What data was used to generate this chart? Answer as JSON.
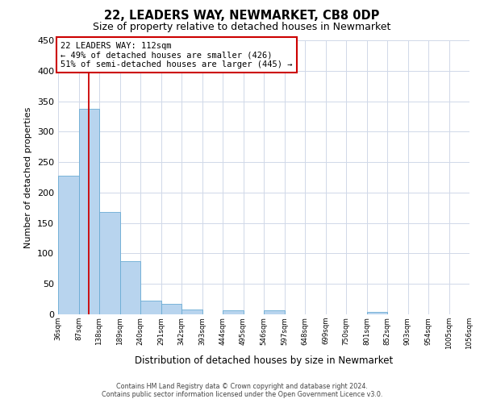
{
  "title": "22, LEADERS WAY, NEWMARKET, CB8 0DP",
  "subtitle": "Size of property relative to detached houses in Newmarket",
  "xlabel": "Distribution of detached houses by size in Newmarket",
  "ylabel": "Number of detached properties",
  "bin_starts": [
    36,
    87,
    138,
    189,
    240,
    291,
    342,
    393,
    444,
    495,
    546,
    597,
    648,
    699,
    750,
    801,
    852,
    903,
    954,
    1005
  ],
  "bar_counts": [
    228,
    338,
    168,
    88,
    23,
    17,
    8,
    0,
    6,
    0,
    7,
    0,
    0,
    0,
    0,
    4,
    0,
    0,
    0,
    0
  ],
  "bin_width": 51,
  "xtick_labels": [
    "36sqm",
    "87sqm",
    "138sqm",
    "189sqm",
    "240sqm",
    "291sqm",
    "342sqm",
    "393sqm",
    "444sqm",
    "495sqm",
    "546sqm",
    "597sqm",
    "648sqm",
    "699sqm",
    "750sqm",
    "801sqm",
    "852sqm",
    "903sqm",
    "954sqm",
    "1005sqm",
    "1056sqm"
  ],
  "bar_color": "#b8d4ee",
  "bar_edge_color": "#6aacd4",
  "vline_x": 112,
  "vline_color": "#cc0000",
  "ylim": [
    0,
    450
  ],
  "yticks": [
    0,
    50,
    100,
    150,
    200,
    250,
    300,
    350,
    400,
    450
  ],
  "annotation_title": "22 LEADERS WAY: 112sqm",
  "annotation_line1": "← 49% of detached houses are smaller (426)",
  "annotation_line2": "51% of semi-detached houses are larger (445) →",
  "annotation_box_color": "#ffffff",
  "annotation_box_edge": "#cc0000",
  "footer1": "Contains HM Land Registry data © Crown copyright and database right 2024.",
  "footer2": "Contains public sector information licensed under the Open Government Licence v3.0.",
  "background_color": "#ffffff",
  "grid_color": "#d0d8e8"
}
